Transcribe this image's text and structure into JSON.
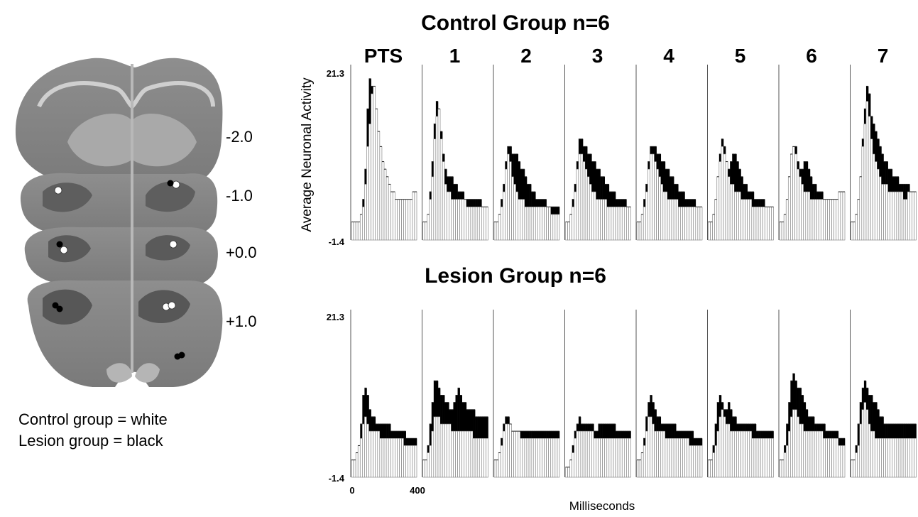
{
  "brain": {
    "coordinates": [
      "-2.0",
      "-1.0",
      "+0.0",
      "+1.0"
    ],
    "legend": {
      "control": "Control group = white",
      "lesion": "Lesion group = black"
    },
    "colors": {
      "control": "#ffffff",
      "lesion": "#000000"
    }
  },
  "chart_data": {
    "type": "bar",
    "ylabel": "Average Neuronal Activity",
    "xlabel": "Milliseconds",
    "ylim": [
      -1.4,
      21.3
    ],
    "y_ticks": [
      "21.3",
      "-1.4"
    ],
    "xlim": [
      0,
      400
    ],
    "x_ticks": [
      "0",
      "400"
    ],
    "sessions": [
      "PTS",
      "1",
      "2",
      "3",
      "4",
      "5",
      "6",
      "7"
    ],
    "groups": [
      {
        "title": "Control Group n=6",
        "panels": [
          {
            "session": "PTS",
            "baseline": [
              1,
              1,
              1,
              1,
              2,
              3,
              6,
              11,
              14,
              18,
              19,
              16,
              13,
              11,
              9,
              8,
              7,
              6,
              5,
              5,
              4,
              4,
              4,
              4,
              4,
              4,
              4,
              4,
              5,
              5
            ],
            "response": [
              1,
              1,
              1,
              1,
              2,
              4,
              8,
              16,
              20,
              19,
              15,
              12,
              10,
              9,
              8,
              7,
              6,
              5,
              5,
              5,
              4,
              4,
              4,
              4,
              4,
              4,
              4,
              4,
              5,
              5
            ]
          },
          {
            "session": "1",
            "baseline": [
              1,
              1,
              2,
              4,
              7,
              12,
              15,
              16,
              12,
              9,
              6,
              5,
              5,
              4,
              4,
              4,
              4,
              4,
              4,
              4,
              3,
              3,
              3,
              3,
              3,
              3,
              3,
              3,
              3,
              3
            ],
            "response": [
              0,
              1,
              2,
              5,
              9,
              14,
              17,
              16,
              13,
              10,
              8,
              7,
              7,
              7,
              6,
              6,
              5,
              5,
              5,
              4,
              4,
              4,
              4,
              4,
              4,
              4,
              4,
              3,
              3,
              3
            ]
          },
          {
            "session": "2",
            "baseline": [
              1,
              1,
              2,
              3,
              5,
              8,
              10,
              9,
              7,
              6,
              5,
              4,
              4,
              4,
              3,
              3,
              3,
              3,
              3,
              3,
              3,
              3,
              3,
              3,
              3,
              3,
              2,
              2,
              2,
              2
            ],
            "response": [
              1,
              1,
              2,
              4,
              6,
              9,
              11,
              11,
              10,
              10,
              10,
              9,
              8,
              8,
              7,
              6,
              6,
              5,
              5,
              4,
              4,
              4,
              4,
              4,
              3,
              3,
              3,
              3,
              3,
              3
            ]
          },
          {
            "session": "3",
            "baseline": [
              1,
              1,
              2,
              3,
              5,
              8,
              10,
              10,
              9,
              8,
              7,
              6,
              5,
              5,
              4,
              4,
              4,
              4,
              4,
              3,
              3,
              3,
              3,
              3,
              3,
              3,
              3,
              3,
              3,
              3
            ],
            "response": [
              1,
              1,
              2,
              4,
              6,
              9,
              12,
              12,
              11,
              11,
              10,
              10,
              9,
              9,
              8,
              8,
              7,
              7,
              6,
              6,
              5,
              5,
              5,
              4,
              4,
              4,
              4,
              4,
              3,
              3
            ]
          },
          {
            "session": "4",
            "baseline": [
              1,
              1,
              2,
              3,
              5,
              8,
              10,
              10,
              9,
              8,
              7,
              6,
              5,
              5,
              4,
              4,
              4,
              4,
              4,
              3,
              3,
              3,
              3,
              3,
              3,
              3,
              3,
              3,
              3,
              3
            ],
            "response": [
              1,
              1,
              2,
              4,
              6,
              9,
              11,
              11,
              11,
              10,
              10,
              9,
              9,
              8,
              8,
              7,
              7,
              6,
              6,
              5,
              5,
              5,
              4,
              4,
              4,
              4,
              4,
              3,
              3,
              3
            ]
          },
          {
            "session": "5",
            "baseline": [
              1,
              1,
              2,
              4,
              7,
              9,
              11,
              10,
              9,
              7,
              6,
              6,
              5,
              5,
              5,
              4,
              4,
              4,
              4,
              4,
              3,
              3,
              3,
              3,
              3,
              3,
              3,
              3,
              3,
              3
            ],
            "response": [
              1,
              1,
              2,
              4,
              7,
              10,
              12,
              11,
              9,
              8,
              9,
              10,
              10,
              9,
              8,
              7,
              6,
              6,
              5,
              5,
              5,
              4,
              4,
              4,
              4,
              4,
              3,
              3,
              3,
              3
            ]
          },
          {
            "session": "6",
            "baseline": [
              1,
              1,
              2,
              4,
              7,
              10,
              11,
              10,
              8,
              7,
              6,
              5,
              5,
              5,
              4,
              4,
              4,
              4,
              4,
              4,
              4,
              4,
              4,
              4,
              4,
              4,
              4,
              5,
              5,
              5
            ],
            "response": [
              1,
              1,
              2,
              4,
              7,
              10,
              11,
              11,
              9,
              8,
              8,
              9,
              9,
              8,
              7,
              6,
              6,
              5,
              5,
              5,
              4,
              4,
              4,
              4,
              4,
              4,
              4,
              5,
              5,
              5
            ]
          },
          {
            "session": "7",
            "baseline": [
              1,
              1,
              2,
              4,
              7,
              11,
              14,
              17,
              15,
              12,
              10,
              9,
              8,
              7,
              6,
              6,
              6,
              5,
              5,
              5,
              5,
              5,
              5,
              5,
              4,
              4,
              5,
              5,
              5,
              5
            ],
            "response": [
              1,
              1,
              2,
              4,
              7,
              12,
              16,
              19,
              18,
              15,
              14,
              13,
              12,
              11,
              10,
              9,
              9,
              8,
              8,
              7,
              7,
              7,
              6,
              6,
              6,
              6,
              6,
              5,
              5,
              5
            ]
          }
        ]
      },
      {
        "title": "Lesion Group n=6",
        "panels": [
          {
            "session": "PTS",
            "baseline": [
              1,
              1,
              2,
              3,
              4,
              6,
              7,
              6,
              5,
              5,
              5,
              5,
              5,
              4,
              4,
              4,
              4,
              4,
              4,
              4,
              4,
              4,
              4,
              4,
              3,
              3,
              3,
              3,
              3,
              3
            ],
            "response": [
              1,
              1,
              2,
              3,
              6,
              10,
              11,
              10,
              8,
              7,
              7,
              6,
              6,
              6,
              6,
              6,
              6,
              6,
              5,
              5,
              5,
              5,
              5,
              5,
              5,
              4,
              4,
              4,
              4,
              4
            ]
          },
          {
            "session": "1",
            "baseline": [
              1,
              1,
              2,
              3,
              5,
              7,
              7,
              7,
              6,
              6,
              6,
              6,
              6,
              5,
              5,
              5,
              5,
              5,
              5,
              5,
              5,
              5,
              5,
              4,
              4,
              4,
              4,
              4,
              4,
              4
            ],
            "response": [
              1,
              1,
              3,
              6,
              9,
              12,
              12,
              11,
              10,
              10,
              9,
              9,
              8,
              8,
              9,
              10,
              11,
              10,
              9,
              9,
              8,
              8,
              8,
              8,
              7,
              7,
              7,
              7,
              7,
              7
            ]
          },
          {
            "session": "2",
            "baseline": [
              1,
              1,
              2,
              3,
              5,
              6,
              6,
              6,
              5,
              5,
              5,
              5,
              4,
              4,
              4,
              4,
              4,
              4,
              4,
              4,
              4,
              4,
              4,
              4,
              4,
              4,
              4,
              4,
              4,
              4
            ],
            "response": [
              1,
              1,
              2,
              4,
              6,
              7,
              7,
              6,
              5,
              5,
              5,
              5,
              5,
              5,
              5,
              5,
              5,
              5,
              5,
              5,
              5,
              5,
              5,
              5,
              5,
              5,
              5,
              5,
              5,
              5
            ]
          },
          {
            "session": "3",
            "baseline": [
              0,
              0,
              1,
              2,
              4,
              5,
              5,
              5,
              5,
              5,
              5,
              5,
              5,
              4,
              4,
              4,
              4,
              4,
              4,
              4,
              4,
              4,
              4,
              4,
              4,
              4,
              4,
              4,
              4,
              4
            ],
            "response": [
              0,
              0,
              1,
              3,
              5,
              6,
              7,
              6,
              6,
              6,
              6,
              6,
              6,
              5,
              5,
              6,
              6,
              6,
              6,
              6,
              6,
              6,
              6,
              5,
              5,
              5,
              5,
              5,
              5,
              5
            ]
          },
          {
            "session": "4",
            "baseline": [
              1,
              1,
              2,
              3,
              5,
              7,
              7,
              6,
              5,
              5,
              5,
              5,
              5,
              4,
              4,
              4,
              4,
              4,
              4,
              4,
              4,
              4,
              4,
              4,
              3,
              3,
              3,
              3,
              3,
              3
            ],
            "response": [
              1,
              1,
              2,
              4,
              7,
              9,
              10,
              9,
              8,
              7,
              7,
              6,
              6,
              6,
              6,
              6,
              6,
              6,
              5,
              5,
              5,
              5,
              5,
              5,
              5,
              5,
              4,
              4,
              4,
              4
            ]
          },
          {
            "session": "5",
            "baseline": [
              1,
              1,
              2,
              3,
              5,
              7,
              8,
              7,
              6,
              6,
              5,
              5,
              5,
              5,
              5,
              5,
              5,
              5,
              5,
              5,
              4,
              4,
              4,
              4,
              4,
              4,
              4,
              4,
              4,
              4
            ],
            "response": [
              1,
              1,
              3,
              6,
              9,
              10,
              9,
              8,
              8,
              9,
              8,
              7,
              7,
              6,
              6,
              6,
              6,
              6,
              6,
              6,
              6,
              6,
              5,
              5,
              5,
              5,
              5,
              5,
              5,
              5
            ]
          },
          {
            "session": "6",
            "baseline": [
              1,
              1,
              2,
              3,
              5,
              7,
              8,
              8,
              7,
              6,
              6,
              5,
              5,
              5,
              5,
              5,
              5,
              5,
              5,
              5,
              4,
              4,
              4,
              4,
              4,
              4,
              4,
              3,
              3,
              3
            ],
            "response": [
              1,
              1,
              3,
              6,
              9,
              12,
              13,
              12,
              11,
              11,
              10,
              9,
              8,
              7,
              7,
              7,
              6,
              6,
              6,
              6,
              6,
              5,
              5,
              5,
              5,
              5,
              5,
              4,
              4,
              4
            ]
          },
          {
            "session": "7",
            "baseline": [
              1,
              1,
              2,
              3,
              6,
              8,
              9,
              8,
              6,
              5,
              5,
              4,
              4,
              4,
              4,
              4,
              4,
              4,
              4,
              4,
              4,
              4,
              4,
              4,
              4,
              4,
              4,
              4,
              4,
              4
            ],
            "response": [
              1,
              1,
              3,
              6,
              9,
              11,
              12,
              11,
              10,
              10,
              9,
              9,
              8,
              7,
              7,
              6,
              6,
              6,
              6,
              6,
              6,
              6,
              6,
              6,
              6,
              6,
              6,
              6,
              6,
              6
            ]
          }
        ]
      }
    ]
  }
}
